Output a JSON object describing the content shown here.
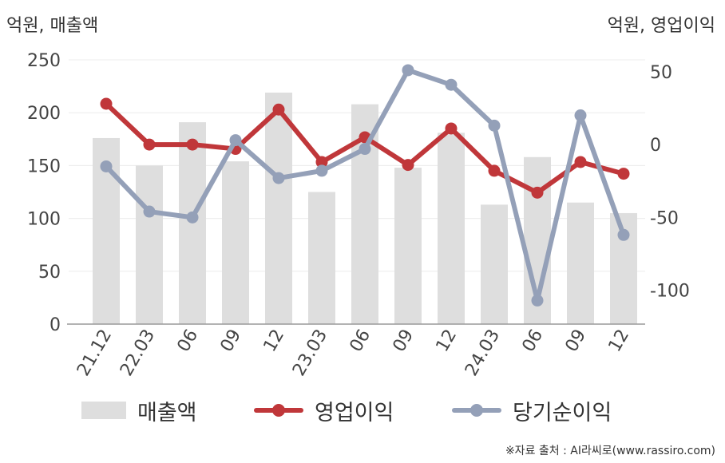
{
  "axis_units": {
    "left": "억원, 매출액",
    "right": "억원, 영업이익"
  },
  "chart_data": {
    "type": "bar",
    "categories": [
      "21.12",
      "22.03",
      "06",
      "09",
      "12",
      "23.03",
      "06",
      "09",
      "12",
      "24.03",
      "06",
      "09",
      "12"
    ],
    "series": [
      {
        "name": "매출액",
        "type": "bar",
        "axis": "left",
        "color": "#dedede",
        "values": [
          176,
          150,
          191,
          154,
          219,
          125,
          208,
          148,
          181,
          113,
          158,
          115,
          105
        ]
      },
      {
        "name": "영업이익",
        "type": "line",
        "axis": "right",
        "color": "#c0373a",
        "values": [
          28,
          0,
          0,
          -3,
          24,
          -12,
          5,
          -14,
          11,
          -18,
          -33,
          -12,
          -20
        ]
      },
      {
        "name": "당기순이익",
        "type": "line",
        "axis": "right",
        "color": "#94a0b8",
        "values": [
          -15,
          -46,
          -50,
          3,
          -23,
          -18,
          -3,
          51,
          41,
          13,
          -107,
          20,
          -62
        ]
      }
    ],
    "y_left": {
      "min": 0,
      "max": 250,
      "ticks": [
        0,
        50,
        100,
        150,
        200,
        250
      ]
    },
    "y_right": {
      "min": -123.2,
      "max": 58.1,
      "ticks": [
        -100,
        -50,
        0,
        50
      ]
    },
    "grid": true,
    "legend_position": "bottom"
  },
  "legend": [
    {
      "label": "매출액"
    },
    {
      "label": "영업이익"
    },
    {
      "label": "당기순이익"
    }
  ],
  "source": "※자료 출처 : AI라씨로(www.rassiro.com)"
}
